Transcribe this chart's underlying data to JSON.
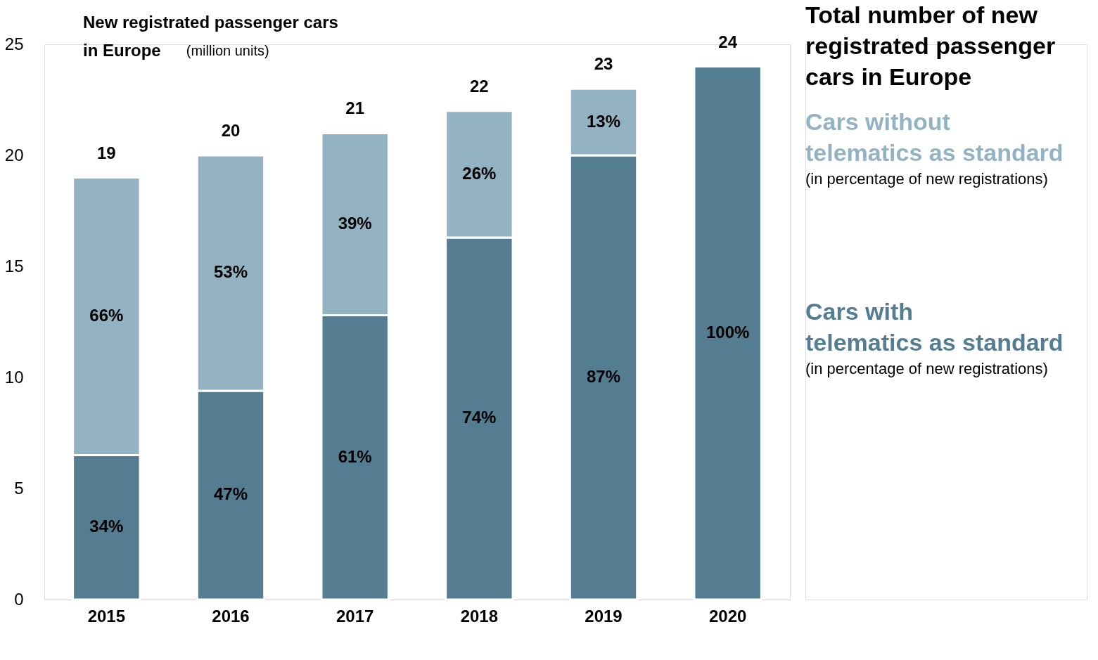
{
  "chart_data": {
    "type": "bar",
    "title": "New registrated passenger cars in Europe",
    "ylabel": "(million units)",
    "legend_title": "Total number of new registrated passenger cars in Europe",
    "categories": [
      "2015",
      "2016",
      "2017",
      "2018",
      "2019",
      "2020"
    ],
    "stacked": true,
    "series": [
      {
        "name": "Cars with telematics as standard",
        "color": "#557d91",
        "values": [
          6.5,
          9.4,
          12.8,
          16.3,
          20.0,
          24
        ]
      },
      {
        "name": "Cars without telematics as standard",
        "color": "#93b2c2",
        "values": [
          12.5,
          10.6,
          8.2,
          5.7,
          3.0,
          null
        ]
      }
    ],
    "totals": [
      "19",
      "20",
      "21",
      "22",
      "23",
      "24"
    ],
    "ylim": [
      0,
      25
    ],
    "yticks": [
      0,
      5,
      10,
      15,
      20,
      25
    ],
    "grid": false,
    "legend": "right",
    "annotations": [
      "(in percentage of new registrations)",
      "(in percentage of new registrations)",
      "34%",
      "47%",
      "61%",
      "74%",
      "87%",
      "100%",
      "66%",
      "53%",
      "39%",
      "26%",
      "13%"
    ]
  }
}
